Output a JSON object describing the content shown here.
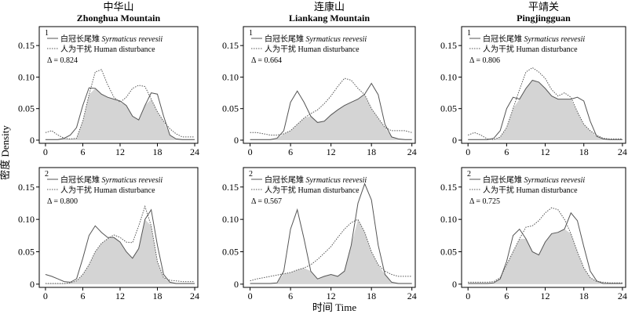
{
  "figure": {
    "ylabel": "密度 Density",
    "xlabel": "时间 Time",
    "colors": {
      "overlap_fill": "#d4d4d4",
      "line": "#555555",
      "axis": "#000000"
    }
  },
  "chart_data": [
    {
      "type": "area",
      "site": "中华山",
      "site_en": "Zhonghua Mountain",
      "panel_number": "1",
      "legend": [
        "白冠长尾雉",
        "Syrmaticus reevesii",
        "人为干扰 Human disturbance"
      ],
      "delta_label": "Δ = 0.824",
      "xticks": [
        "0",
        "6",
        "12",
        "18",
        "24"
      ],
      "yticks": [
        "0",
        "0.05",
        "0.10",
        "0.15"
      ],
      "xlim": [
        -1,
        24.5
      ],
      "ylim": [
        -0.005,
        0.18
      ],
      "x": [
        0,
        1,
        2,
        3,
        4,
        5,
        6,
        7,
        8,
        9,
        10,
        11,
        12,
        13,
        14,
        15,
        16,
        17,
        18,
        19,
        20,
        21,
        22,
        23,
        24
      ],
      "series": [
        {
          "values": [
            0.001,
            0.001,
            0.001,
            0.003,
            0.008,
            0.02,
            0.055,
            0.083,
            0.082,
            0.073,
            0.068,
            0.065,
            0.062,
            0.055,
            0.038,
            0.032,
            0.055,
            0.075,
            0.073,
            0.038,
            0.008,
            0.002,
            0.001,
            0.001,
            0.001
          ]
        },
        {
          "values": [
            0.012,
            0.015,
            0.008,
            0.003,
            0.002,
            0.003,
            0.03,
            0.072,
            0.108,
            0.112,
            0.088,
            0.068,
            0.06,
            0.068,
            0.082,
            0.087,
            0.085,
            0.065,
            0.045,
            0.03,
            0.018,
            0.01,
            0.005,
            0.005,
            0.005
          ]
        }
      ]
    },
    {
      "type": "area",
      "site": "连康山",
      "site_en": "Liankang Mountain",
      "panel_number": "1",
      "legend": [
        "白冠长尾雉",
        "Syrmaticus reevesii",
        "人为干扰 Human disturbance"
      ],
      "delta_label": "Δ = 0.664",
      "xticks": [
        "0",
        "6",
        "12",
        "18",
        "24"
      ],
      "yticks": [
        "0",
        "0.05",
        "0.10",
        "0.15"
      ],
      "xlim": [
        -1,
        24.5
      ],
      "ylim": [
        -0.005,
        0.18
      ],
      "x": [
        0,
        1,
        2,
        3,
        4,
        5,
        6,
        7,
        8,
        9,
        10,
        11,
        12,
        13,
        14,
        15,
        16,
        17,
        18,
        19,
        20,
        21,
        22,
        23,
        24
      ],
      "series": [
        {
          "values": [
            0.001,
            0.001,
            0.001,
            0.001,
            0.003,
            0.015,
            0.06,
            0.078,
            0.06,
            0.038,
            0.028,
            0.03,
            0.04,
            0.048,
            0.055,
            0.06,
            0.065,
            0.073,
            0.09,
            0.072,
            0.025,
            0.005,
            0.002,
            0.001,
            0.001
          ]
        },
        {
          "values": [
            0.012,
            0.012,
            0.01,
            0.008,
            0.008,
            0.01,
            0.015,
            0.025,
            0.035,
            0.042,
            0.048,
            0.058,
            0.07,
            0.085,
            0.098,
            0.095,
            0.082,
            0.072,
            0.05,
            0.035,
            0.02,
            0.015,
            0.015,
            0.015,
            0.012
          ]
        }
      ]
    },
    {
      "type": "area",
      "site": "平靖关",
      "site_en": "Pingjingguan",
      "panel_number": "1",
      "legend": [
        "白冠长尾雉",
        "Syrmaticus reevesii",
        "人为干扰 Human disturbance"
      ],
      "delta_label": "Δ = 0.806",
      "xticks": [
        "0",
        "6",
        "12",
        "18",
        "24"
      ],
      "yticks": [
        "0",
        "0.05",
        "0.10",
        "0.15"
      ],
      "xlim": [
        -1,
        24.5
      ],
      "ylim": [
        -0.005,
        0.18
      ],
      "x": [
        0,
        1,
        2,
        3,
        4,
        5,
        6,
        7,
        8,
        9,
        10,
        11,
        12,
        13,
        14,
        15,
        16,
        17,
        18,
        19,
        20,
        21,
        22,
        23,
        24
      ],
      "series": [
        {
          "values": [
            0.001,
            0.001,
            0.001,
            0.001,
            0.003,
            0.015,
            0.05,
            0.068,
            0.065,
            0.082,
            0.095,
            0.092,
            0.082,
            0.07,
            0.065,
            0.065,
            0.065,
            0.068,
            0.062,
            0.03,
            0.006,
            0.002,
            0.001,
            0.001,
            0.001
          ]
        },
        {
          "values": [
            0.008,
            0.012,
            0.008,
            0.002,
            0.001,
            0.005,
            0.02,
            0.05,
            0.08,
            0.108,
            0.115,
            0.108,
            0.098,
            0.08,
            0.07,
            0.075,
            0.068,
            0.045,
            0.025,
            0.015,
            0.008,
            0.003,
            0.002,
            0.002,
            0.002
          ]
        }
      ]
    },
    {
      "type": "area",
      "site": "中华山",
      "site_en": "Zhonghua Mountain",
      "panel_number": "2",
      "legend": [
        "白冠长尾雉",
        "Syrmaticus reevesii",
        "人为干扰 Human disturbance"
      ],
      "delta_label": "Δ = 0.800",
      "xticks": [
        "0",
        "6",
        "12",
        "18",
        "24"
      ],
      "yticks": [
        "0",
        "0.05",
        "0.10",
        "0.15"
      ],
      "xlim": [
        -1,
        24.5
      ],
      "ylim": [
        -0.005,
        0.18
      ],
      "x": [
        0,
        1,
        2,
        3,
        4,
        5,
        6,
        7,
        8,
        9,
        10,
        11,
        12,
        13,
        14,
        15,
        16,
        17,
        18,
        19,
        20,
        21,
        22,
        23,
        24
      ],
      "series": [
        {
          "values": [
            0.015,
            0.012,
            0.008,
            0.004,
            0.003,
            0.008,
            0.04,
            0.075,
            0.09,
            0.08,
            0.072,
            0.072,
            0.065,
            0.05,
            0.04,
            0.055,
            0.1,
            0.115,
            0.06,
            0.015,
            0.003,
            0.001,
            0.001,
            0.001,
            0.001
          ]
        },
        {
          "values": [
            0.001,
            0.001,
            0.001,
            0.001,
            0.002,
            0.005,
            0.015,
            0.03,
            0.05,
            0.063,
            0.07,
            0.076,
            0.072,
            0.065,
            0.064,
            0.09,
            0.12,
            0.09,
            0.035,
            0.01,
            0.006,
            0.005,
            0.004,
            0.004,
            0.004
          ]
        }
      ]
    },
    {
      "type": "area",
      "site": "连康山",
      "site_en": "Liankang Mountain",
      "panel_number": "2",
      "legend": [
        "白冠长尾雉",
        "Syrmaticus reevesii",
        "人为干扰 Human disturbance"
      ],
      "delta_label": "Δ = 0.567",
      "xticks": [
        "0",
        "6",
        "12",
        "18",
        "24"
      ],
      "yticks": [
        "0",
        "0.05",
        "0.10",
        "0.15"
      ],
      "xlim": [
        -1,
        24.5
      ],
      "ylim": [
        -0.005,
        0.18
      ],
      "x": [
        0,
        1,
        2,
        3,
        4,
        5,
        6,
        7,
        8,
        9,
        10,
        11,
        12,
        13,
        14,
        15,
        16,
        17,
        18,
        19,
        20,
        21,
        22,
        23,
        24
      ],
      "series": [
        {
          "values": [
            0.001,
            0.001,
            0.001,
            0.001,
            0.002,
            0.02,
            0.085,
            0.115,
            0.07,
            0.02,
            0.008,
            0.012,
            0.015,
            0.012,
            0.02,
            0.06,
            0.125,
            0.155,
            0.13,
            0.06,
            0.015,
            0.003,
            0.001,
            0.001,
            0.001
          ]
        },
        {
          "values": [
            0.005,
            0.008,
            0.01,
            0.012,
            0.014,
            0.016,
            0.018,
            0.022,
            0.025,
            0.03,
            0.038,
            0.048,
            0.058,
            0.072,
            0.085,
            0.095,
            0.1,
            0.08,
            0.05,
            0.03,
            0.02,
            0.015,
            0.012,
            0.012,
            0.012
          ]
        }
      ]
    },
    {
      "type": "area",
      "site": "平靖关",
      "site_en": "Pingjingguan",
      "panel_number": "2",
      "legend": [
        "白冠长尾雉",
        "Syrmaticus reevesii",
        "人为干扰 Human disturbance"
      ],
      "delta_label": "Δ = 0.725",
      "xticks": [
        "0",
        "6",
        "12",
        "18",
        "24"
      ],
      "yticks": [
        "0",
        "0.05",
        "0.10",
        "0.15"
      ],
      "xlim": [
        -1,
        24.5
      ],
      "ylim": [
        -0.005,
        0.18
      ],
      "x": [
        0,
        1,
        2,
        3,
        4,
        5,
        6,
        7,
        8,
        9,
        10,
        11,
        12,
        13,
        14,
        15,
        16,
        17,
        18,
        19,
        20,
        21,
        22,
        23,
        24
      ],
      "series": [
        {
          "values": [
            0.001,
            0.001,
            0.001,
            0.001,
            0.002,
            0.008,
            0.035,
            0.075,
            0.085,
            0.07,
            0.05,
            0.045,
            0.065,
            0.078,
            0.08,
            0.085,
            0.11,
            0.098,
            0.058,
            0.02,
            0.005,
            0.001,
            0.001,
            0.001,
            0.001
          ]
        },
        {
          "values": [
            0.003,
            0.003,
            0.003,
            0.003,
            0.004,
            0.01,
            0.03,
            0.05,
            0.07,
            0.088,
            0.09,
            0.098,
            0.11,
            0.118,
            0.115,
            0.1,
            0.078,
            0.05,
            0.025,
            0.01,
            0.004,
            0.003,
            0.002,
            0.002,
            0.002
          ]
        }
      ]
    }
  ]
}
